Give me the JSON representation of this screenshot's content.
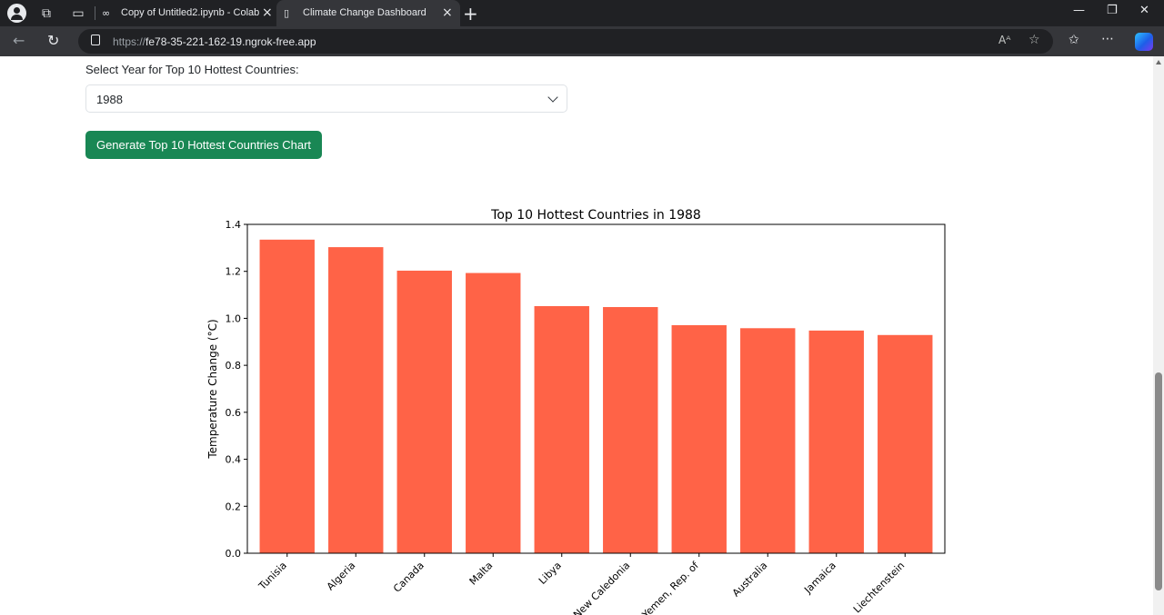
{
  "browser": {
    "tabs": [
      {
        "title": "Copy of Untitled2.ipynb - Colab",
        "icon": "colab-icon",
        "active": false
      },
      {
        "title": "Climate Change Dashboard",
        "icon": "page-icon",
        "active": true
      }
    ],
    "url_scheme": "https://",
    "url_host": "fe78-35-221-162-19.ngrok-free.app"
  },
  "form": {
    "year_label": "Select Year for Top 10 Hottest Countries:",
    "year_value": "1988",
    "generate_label": "Generate Top 10 Hottest Countries Chart"
  },
  "chart_data": {
    "type": "bar",
    "title": "Top 10 Hottest Countries in 1988",
    "xlabel": "",
    "ylabel": "Temperature Change (°C)",
    "ylim": [
      0,
      1.4
    ],
    "yticks": [
      "0.0",
      "0.2",
      "0.4",
      "0.6",
      "0.8",
      "1.0",
      "1.2",
      "1.4"
    ],
    "categories": [
      "Tunisia",
      "Algeria",
      "Canada",
      "Malta",
      "Libya",
      "New Caledonia",
      "Yemen, Rep. of",
      "Australia",
      "Jamaica",
      "Liechtenstein"
    ],
    "values": [
      1.335,
      1.303,
      1.203,
      1.193,
      1.052,
      1.048,
      0.971,
      0.958,
      0.948,
      0.929
    ],
    "bar_color": "#ff6347",
    "grid": false
  },
  "colors": {
    "button_green": "#198754"
  }
}
